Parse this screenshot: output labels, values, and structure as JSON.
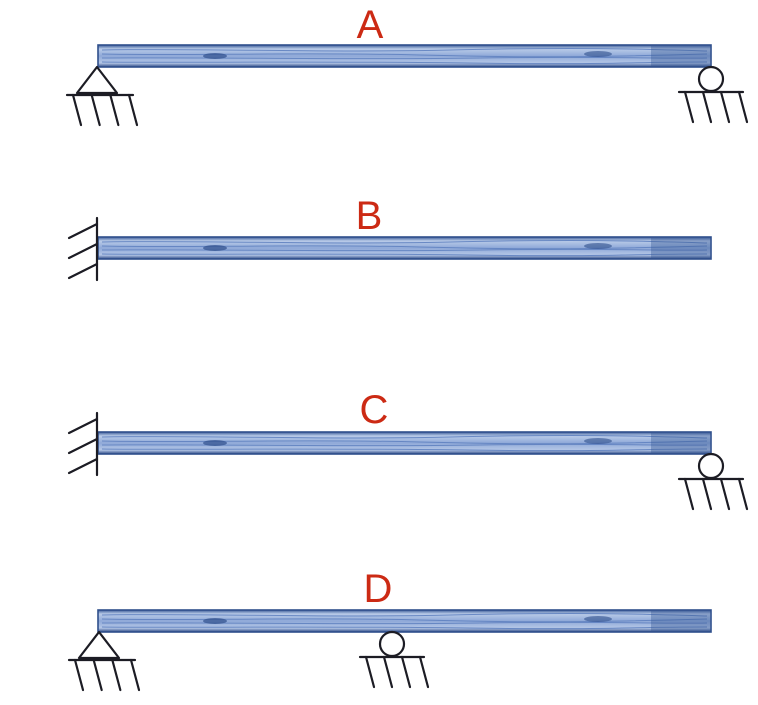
{
  "colors": {
    "label": "#cc2a14",
    "beam_fill": "#c9d8ee",
    "beam_dark": "#2f4f8c",
    "beam_mid": "#5d7fbe",
    "ink": "#1c1c24"
  },
  "diagram": {
    "beams": [
      {
        "label": "A",
        "supports": [
          {
            "type": "pinned",
            "position": "left-end"
          },
          {
            "type": "roller",
            "position": "right-end"
          }
        ]
      },
      {
        "label": "B",
        "supports": [
          {
            "type": "fixed-wall",
            "position": "left-end"
          }
        ]
      },
      {
        "label": "C",
        "supports": [
          {
            "type": "fixed-wall",
            "position": "left-end"
          },
          {
            "type": "roller",
            "position": "right-end"
          }
        ]
      },
      {
        "label": "D",
        "supports": [
          {
            "type": "pinned",
            "position": "left-end"
          },
          {
            "type": "roller",
            "position": "midspan"
          }
        ]
      }
    ]
  }
}
